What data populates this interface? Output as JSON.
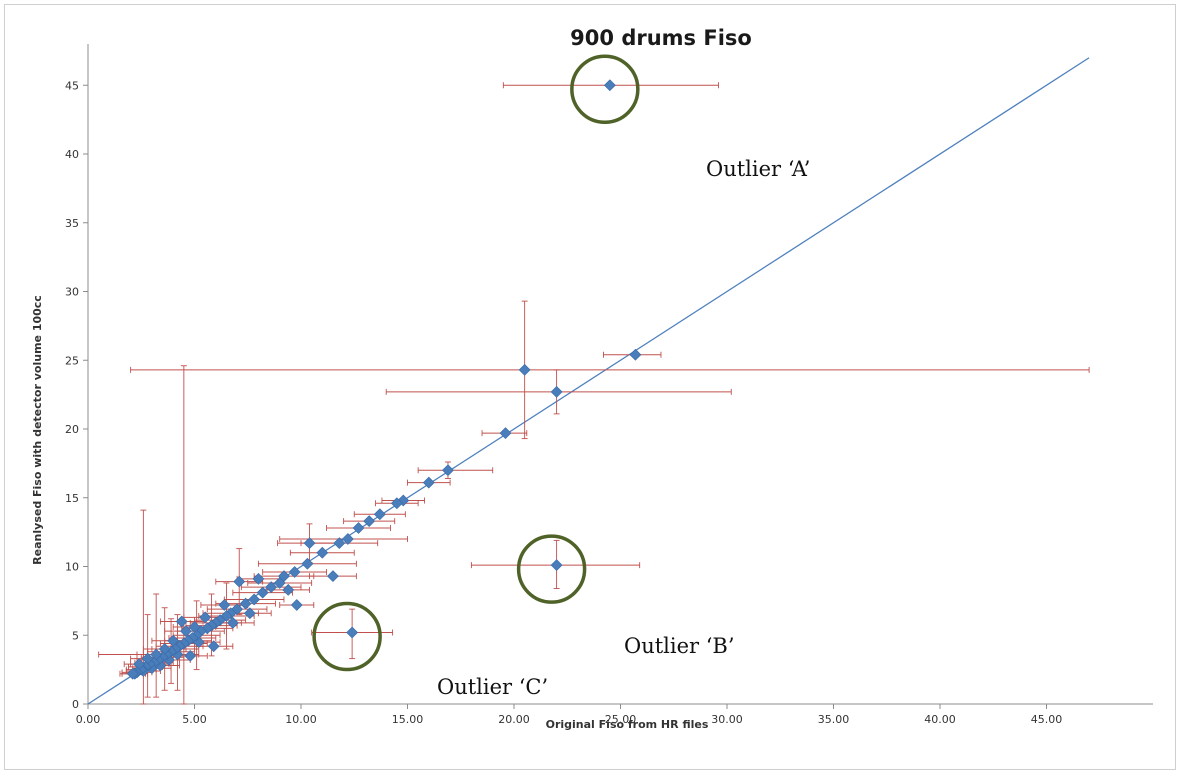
{
  "chart_data": {
    "type": "scatter",
    "title": "900 drums Fiso",
    "xlabel": "Original Fiso from HR files",
    "ylabel": "Reanlysed Fiso with detector volume 100cc",
    "xlim": [
      0,
      50
    ],
    "ylim": [
      0,
      48
    ],
    "x_ticks": [
      "0.00",
      "5.00",
      "10.00",
      "15.00",
      "20.00",
      "25.00",
      "30.00",
      "35.00",
      "40.00",
      "45.00"
    ],
    "y_ticks": [
      "0",
      "5",
      "10",
      "15",
      "20",
      "25",
      "30",
      "35",
      "40",
      "45"
    ],
    "grid": false,
    "legend": "none",
    "colors": {
      "points": "#4a7ebb",
      "error_bars": "#c0504d",
      "line": "#4f81bd",
      "circles": "#4f6228"
    },
    "reference_line": {
      "x": [
        0,
        47
      ],
      "y": [
        0,
        47
      ]
    },
    "highlighted_points": [
      {
        "x": 24.5,
        "y": 45.0,
        "xerr_low": 19.5,
        "xerr_high": 29.6
      },
      {
        "x": 22.0,
        "y": 10.1,
        "xerr_low": 18.0,
        "xerr_high": 25.9,
        "yerr_low": 8.4,
        "yerr_high": 11.9
      },
      {
        "x": 12.4,
        "y": 5.2,
        "xerr_low": 10.5,
        "xerr_high": 14.3,
        "yerr_low": 3.3,
        "yerr_high": 6.9
      }
    ],
    "points": [
      {
        "x": 25.7,
        "y": 25.4,
        "xerr_low": 24.2,
        "xerr_high": 26.9
      },
      {
        "x": 22.0,
        "y": 22.7,
        "xerr_low": 14.0,
        "xerr_high": 30.2,
        "yerr_low": 21.1,
        "yerr_high": 24.3
      },
      {
        "x": 20.5,
        "y": 24.3,
        "xerr_low": 2.0,
        "xerr_high": 47.0,
        "yerr_low": 19.3,
        "yerr_high": 29.3
      },
      {
        "x": 19.6,
        "y": 19.7,
        "xerr_low": 18.5,
        "xerr_high": 20.6
      },
      {
        "x": 16.9,
        "y": 17.0,
        "xerr_low": 15.5,
        "xerr_high": 19.0,
        "yerr_low": 16.4,
        "yerr_high": 17.6
      },
      {
        "x": 16.0,
        "y": 16.1,
        "xerr_low": 15.0,
        "xerr_high": 17.0
      },
      {
        "x": 14.8,
        "y": 14.8,
        "xerr_low": 13.8,
        "xerr_high": 15.8
      },
      {
        "x": 14.5,
        "y": 14.6,
        "xerr_low": 13.5,
        "xerr_high": 15.5
      },
      {
        "x": 13.7,
        "y": 13.8,
        "xerr_low": 12.5,
        "xerr_high": 14.9
      },
      {
        "x": 13.2,
        "y": 13.3,
        "xerr_low": 12.0,
        "xerr_high": 14.4
      },
      {
        "x": 12.7,
        "y": 12.8,
        "xerr_low": 11.2,
        "xerr_high": 14.2
      },
      {
        "x": 12.2,
        "y": 12.0,
        "xerr_low": 9.0,
        "xerr_high": 15.0
      },
      {
        "x": 11.8,
        "y": 11.7,
        "xerr_low": 10.0,
        "xerr_high": 13.6
      },
      {
        "x": 11.5,
        "y": 9.3,
        "xerr_low": 10.4,
        "xerr_high": 12.6
      },
      {
        "x": 11.0,
        "y": 11.0,
        "xerr_low": 9.5,
        "xerr_high": 12.5
      },
      {
        "x": 10.4,
        "y": 11.7,
        "xerr_low": 8.9,
        "xerr_high": 11.9,
        "yerr_low": 10.3,
        "yerr_high": 13.1
      },
      {
        "x": 10.3,
        "y": 10.2,
        "xerr_low": 8.0,
        "xerr_high": 12.6
      },
      {
        "x": 9.8,
        "y": 7.2,
        "xerr_low": 9.0,
        "xerr_high": 10.6
      },
      {
        "x": 9.7,
        "y": 9.6,
        "xerr_low": 8.2,
        "xerr_high": 11.2
      },
      {
        "x": 9.4,
        "y": 8.3,
        "xerr_low": 8.4,
        "xerr_high": 10.4
      },
      {
        "x": 9.2,
        "y": 9.3,
        "xerr_low": 7.8,
        "xerr_high": 10.6
      },
      {
        "x": 9.0,
        "y": 8.8,
        "xerr_low": 7.5,
        "xerr_high": 10.5
      },
      {
        "x": 8.6,
        "y": 8.5,
        "xerr_low": 7.2,
        "xerr_high": 10.0
      },
      {
        "x": 8.2,
        "y": 8.1,
        "xerr_low": 6.8,
        "xerr_high": 9.6
      },
      {
        "x": 8.0,
        "y": 9.1,
        "xerr_low": 7.0,
        "xerr_high": 9.0
      },
      {
        "x": 7.8,
        "y": 7.6,
        "xerr_low": 6.4,
        "xerr_high": 9.2
      },
      {
        "x": 7.6,
        "y": 6.6,
        "xerr_low": 6.6,
        "xerr_high": 8.6
      },
      {
        "x": 7.4,
        "y": 7.3,
        "xerr_low": 6.0,
        "xerr_high": 8.8
      },
      {
        "x": 7.1,
        "y": 8.9,
        "xerr_low": 6.0,
        "xerr_high": 8.2,
        "yerr_low": 6.5,
        "yerr_high": 11.3
      },
      {
        "x": 7.0,
        "y": 6.9,
        "xerr_low": 5.6,
        "xerr_high": 8.4
      },
      {
        "x": 6.8,
        "y": 5.9,
        "xerr_low": 5.8,
        "xerr_high": 7.8
      },
      {
        "x": 6.7,
        "y": 6.6,
        "xerr_low": 5.4,
        "xerr_high": 8.0
      },
      {
        "x": 6.5,
        "y": 6.4,
        "xerr_low": 5.2,
        "xerr_high": 7.8,
        "yerr_low": 4.0,
        "yerr_high": 8.8
      },
      {
        "x": 6.4,
        "y": 7.2,
        "xerr_low": 5.3,
        "xerr_high": 7.5
      },
      {
        "x": 6.2,
        "y": 6.1,
        "xerr_low": 5.0,
        "xerr_high": 7.4
      },
      {
        "x": 6.0,
        "y": 5.9,
        "xerr_low": 4.8,
        "xerr_high": 7.2
      },
      {
        "x": 5.9,
        "y": 4.2,
        "xerr_low": 5.0,
        "xerr_high": 6.8
      },
      {
        "x": 5.8,
        "y": 5.7,
        "xerr_low": 4.6,
        "xerr_high": 7.0,
        "yerr_low": 3.5,
        "yerr_high": 8.0
      },
      {
        "x": 5.6,
        "y": 5.5,
        "xerr_low": 4.4,
        "xerr_high": 6.8
      },
      {
        "x": 5.5,
        "y": 6.3,
        "xerr_low": 4.5,
        "xerr_high": 6.5
      },
      {
        "x": 5.3,
        "y": 5.3,
        "xerr_low": 4.2,
        "xerr_high": 6.4
      },
      {
        "x": 5.2,
        "y": 4.5,
        "xerr_low": 4.2,
        "xerr_high": 6.2
      },
      {
        "x": 5.1,
        "y": 5.0,
        "xerr_low": 4.0,
        "xerr_high": 6.2,
        "yerr_low": 2.5,
        "yerr_high": 7.5
      },
      {
        "x": 5.0,
        "y": 5.6,
        "xerr_low": 4.0,
        "xerr_high": 6.0
      },
      {
        "x": 4.9,
        "y": 4.8,
        "xerr_low": 3.8,
        "xerr_high": 6.0
      },
      {
        "x": 4.8,
        "y": 3.5,
        "xerr_low": 4.0,
        "xerr_high": 5.6
      },
      {
        "x": 4.7,
        "y": 4.6,
        "xerr_low": 3.6,
        "xerr_high": 5.8
      },
      {
        "x": 4.6,
        "y": 5.3,
        "xerr_low": 3.6,
        "xerr_high": 5.6
      },
      {
        "x": 4.5,
        "y": 4.4,
        "xerr_low": 3.4,
        "xerr_high": 5.6,
        "yerr_low": 0.0,
        "yerr_high": 24.6
      },
      {
        "x": 4.4,
        "y": 6.0,
        "xerr_low": 3.4,
        "xerr_high": 5.4
      },
      {
        "x": 4.3,
        "y": 4.2,
        "xerr_low": 3.2,
        "xerr_high": 5.4
      },
      {
        "x": 4.2,
        "y": 3.6,
        "xerr_low": 0.5,
        "xerr_high": 5.2,
        "yerr_low": 1.0,
        "yerr_high": 6.5
      },
      {
        "x": 4.1,
        "y": 4.0,
        "xerr_low": 3.0,
        "xerr_high": 5.2
      },
      {
        "x": 4.0,
        "y": 4.6,
        "xerr_low": 3.0,
        "xerr_high": 5.0
      },
      {
        "x": 3.9,
        "y": 3.8,
        "xerr_low": 2.8,
        "xerr_high": 5.0,
        "yerr_low": 1.5,
        "yerr_high": 6.2
      },
      {
        "x": 3.8,
        "y": 3.2,
        "xerr_low": 2.8,
        "xerr_high": 4.8
      },
      {
        "x": 3.7,
        "y": 3.6,
        "xerr_low": 2.6,
        "xerr_high": 4.8
      },
      {
        "x": 3.6,
        "y": 4.0,
        "xerr_low": 2.6,
        "xerr_high": 4.6,
        "yerr_low": 1.0,
        "yerr_high": 7.0
      },
      {
        "x": 3.5,
        "y": 3.4,
        "xerr_low": 2.5,
        "xerr_high": 4.5
      },
      {
        "x": 3.4,
        "y": 2.8,
        "xerr_low": 2.5,
        "xerr_high": 4.3
      },
      {
        "x": 3.3,
        "y": 3.2,
        "xerr_low": 2.3,
        "xerr_high": 4.3
      },
      {
        "x": 3.2,
        "y": 3.6,
        "xerr_low": 2.3,
        "xerr_high": 4.1,
        "yerr_low": 0.5,
        "yerr_high": 8.0
      },
      {
        "x": 3.1,
        "y": 3.0,
        "xerr_low": 2.2,
        "xerr_high": 4.0
      },
      {
        "x": 3.0,
        "y": 2.6,
        "xerr_low": 2.1,
        "xerr_high": 3.9
      },
      {
        "x": 2.9,
        "y": 2.9,
        "xerr_low": 2.0,
        "xerr_high": 3.8
      },
      {
        "x": 2.8,
        "y": 3.3,
        "xerr_low": 2.0,
        "xerr_high": 3.6,
        "yerr_low": 0.5,
        "yerr_high": 6.5
      },
      {
        "x": 2.7,
        "y": 2.7,
        "xerr_low": 1.9,
        "xerr_high": 3.5
      },
      {
        "x": 2.6,
        "y": 2.4,
        "xerr_low": 1.8,
        "xerr_high": 3.4,
        "yerr_low": 0.0,
        "yerr_high": 14.1
      },
      {
        "x": 2.5,
        "y": 2.5,
        "xerr_low": 1.8,
        "xerr_high": 3.2
      },
      {
        "x": 2.4,
        "y": 2.9,
        "xerr_low": 1.7,
        "xerr_high": 3.1
      },
      {
        "x": 2.3,
        "y": 2.3,
        "xerr_low": 1.6,
        "xerr_high": 3.0
      },
      {
        "x": 2.2,
        "y": 2.2,
        "xerr_low": 1.6,
        "xerr_high": 2.8
      },
      {
        "x": 2.1,
        "y": 2.2,
        "xerr_low": 1.5,
        "xerr_high": 2.7
      }
    ],
    "annotations": [
      {
        "text": "Outlier ‘A’"
      },
      {
        "text": "Outlier ‘B’"
      },
      {
        "text": "Outlier ‘C’"
      }
    ]
  }
}
